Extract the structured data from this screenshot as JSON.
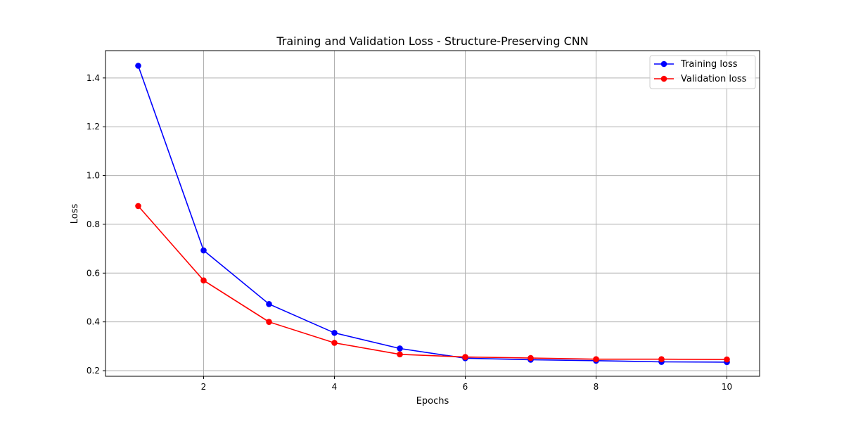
{
  "chart_data": {
    "type": "line",
    "title": "Training and Validation Loss - Structure-Preserving CNN",
    "xlabel": "Epochs",
    "ylabel": "Loss",
    "xlim": [
      0.5,
      10.5
    ],
    "ylim": [
      0.177,
      1.512
    ],
    "xticks": [
      2,
      4,
      6,
      8,
      10
    ],
    "yticks": [
      0.2,
      0.4,
      0.6,
      0.8,
      1.0,
      1.2,
      1.4
    ],
    "ytick_labels": [
      "0.2",
      "0.4",
      "0.6",
      "0.8",
      "1.0",
      "1.2",
      "1.4"
    ],
    "grid": true,
    "legend_position": "top-right",
    "x": [
      1,
      2,
      3,
      4,
      5,
      6,
      7,
      8,
      9,
      10
    ],
    "series": [
      {
        "name": "Training loss",
        "color": "#0000ff",
        "marker": "circle",
        "values": [
          1.45,
          0.693,
          0.473,
          0.355,
          0.291,
          0.251,
          0.245,
          0.241,
          0.236,
          0.235
        ]
      },
      {
        "name": "Validation loss",
        "color": "#ff0000",
        "marker": "circle",
        "values": [
          0.875,
          0.57,
          0.4,
          0.314,
          0.267,
          0.256,
          0.252,
          0.247,
          0.247,
          0.246
        ]
      }
    ]
  }
}
